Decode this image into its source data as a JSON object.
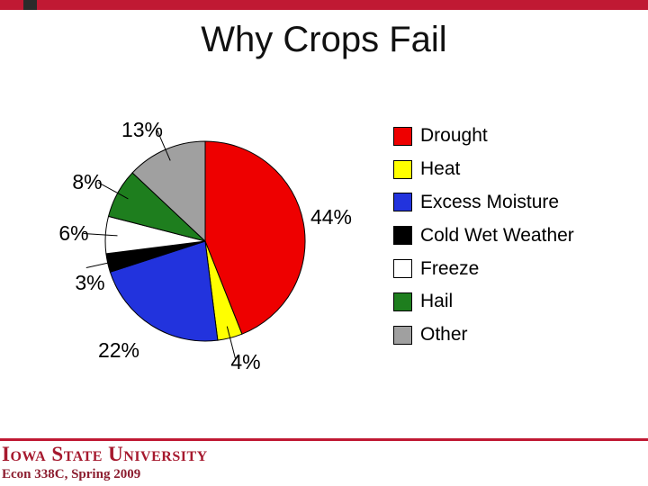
{
  "slide": {
    "title": "Why Crops Fail",
    "footer": {
      "wordmark": "Iowa State University",
      "course": "Econ 338C, Spring 2009"
    }
  },
  "chart_data": {
    "type": "pie",
    "title": "Why Crops Fail",
    "legend_position": "right",
    "direction": "clockwise",
    "start_angle": "12 o'clock",
    "slices": [
      {
        "label": "Drought",
        "value": 44,
        "pct_label": "44%",
        "color": "#EE0000"
      },
      {
        "label": "Heat",
        "value": 4,
        "pct_label": "4%",
        "color": "#FFFF00"
      },
      {
        "label": "Excess Moisture",
        "value": 22,
        "pct_label": "22%",
        "color": "#2233DD"
      },
      {
        "label": "Cold Wet Weather",
        "value": 3,
        "pct_label": "3%",
        "color": "#000000"
      },
      {
        "label": "Freeze",
        "value": 6,
        "pct_label": "6%",
        "color": "#FFFFFF"
      },
      {
        "label": "Hail",
        "value": 8,
        "pct_label": "8%",
        "color": "#1E7E1E"
      },
      {
        "label": "Other",
        "value": 13,
        "pct_label": "13%",
        "color": "#A0A0A0"
      }
    ]
  },
  "colors": {
    "accent_bar": "#C01933",
    "accent_notch": "#2B2B2B",
    "footer_rule": "#C01933",
    "wordmark": "#A6192E",
    "course_text": "#8C1D2F",
    "slice_outline": "#000000"
  }
}
